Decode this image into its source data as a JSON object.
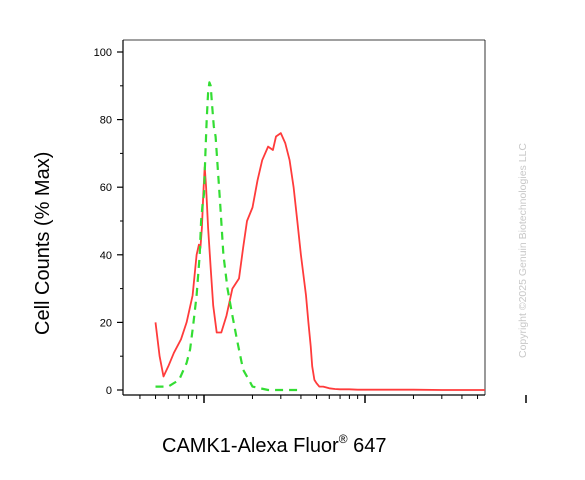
{
  "chart_data": {
    "type": "line",
    "xlabel_main": "CAMK1-Alexa Fluor",
    "xlabel_sup": "®",
    "xlabel_tail": " 647",
    "ylabel": "Cell Counts (% Max)",
    "ylim": [
      0,
      100
    ],
    "yticks": [
      0,
      20,
      40,
      60,
      80,
      100
    ],
    "x_scale": "log",
    "x_decades": [
      100,
      1000,
      10000
    ],
    "grid": false,
    "series": [
      {
        "style": "solid",
        "color": "#ff3b3b",
        "x": [
          50,
          53,
          56,
          60,
          65,
          72,
          78,
          85,
          90,
          93,
          95,
          97,
          99,
          101,
          103,
          106,
          110,
          114,
          120,
          128,
          138,
          150,
          165,
          175,
          185,
          200,
          215,
          230,
          250,
          268,
          280,
          300,
          320,
          340,
          360,
          380,
          400,
          420,
          430,
          445,
          460,
          470,
          485,
          500,
          520,
          550,
          600,
          650,
          700,
          750,
          800,
          900,
          1000,
          1100,
          1200,
          1400,
          1700,
          2000,
          3000,
          5000,
          8000,
          12000
        ],
        "y": [
          20,
          10,
          4,
          7,
          11,
          15,
          20,
          28,
          40,
          43,
          42,
          48,
          58,
          66,
          60,
          48,
          36,
          25,
          17,
          17,
          22,
          30,
          33,
          42,
          50,
          54,
          62,
          68,
          72,
          71,
          75,
          76,
          73,
          68,
          60,
          50,
          40,
          32,
          28,
          20,
          13,
          7,
          3,
          2,
          1,
          1,
          0.5,
          0.3,
          0.2,
          0.2,
          0.2,
          0.1,
          0.1,
          0.1,
          0.1,
          0.1,
          0.1,
          0.1,
          0,
          0,
          0,
          0
        ]
      },
      {
        "style": "dashed",
        "color": "#33dd33",
        "x": [
          50,
          60,
          70,
          78,
          82,
          86,
          90,
          94,
          96,
          98,
          100,
          102,
          104,
          106,
          108,
          110,
          112,
          115,
          118,
          122,
          126,
          132,
          140,
          150,
          160,
          175,
          190,
          200,
          250,
          300,
          400
        ],
        "y": [
          1,
          1,
          3,
          8,
          12,
          20,
          28,
          40,
          50,
          55,
          58,
          70,
          80,
          88,
          91,
          90,
          85,
          78,
          75,
          65,
          55,
          40,
          30,
          22,
          15,
          6,
          3,
          1,
          0,
          0,
          0
        ]
      }
    ]
  },
  "watermark": "Copyright ©2025 Genuin Biotechnologies LLC"
}
